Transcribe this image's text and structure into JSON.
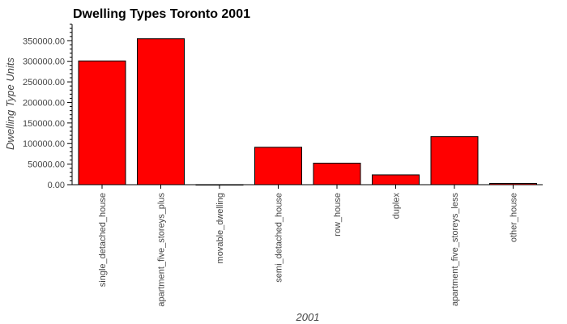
{
  "chart_data": {
    "type": "bar",
    "title": "Dwelling Types Toronto 2001",
    "xlabel": "2001",
    "ylabel": "Dwelling Type Units",
    "categories": [
      "single_detached_house",
      "apartment_five_storeys_plus",
      "movable_dwelling",
      "semi_detached_house",
      "row_house",
      "duplex",
      "apartment_five_storeys_less",
      "other_house"
    ],
    "values": [
      300930,
      355015,
      75,
      90995,
      52355,
      23785,
      116900,
      3040
    ],
    "ylim": [
      0,
      390000
    ],
    "yticks": [
      0,
      50000,
      100000,
      150000,
      200000,
      250000,
      300000,
      350000
    ],
    "ytick_labels": [
      "0.00",
      "50000.00",
      "100000.00",
      "150000.00",
      "200000.00",
      "250000.00",
      "300000.00",
      "350000.00"
    ],
    "grid": false,
    "legend": "none",
    "bar_color": "#ff0000",
    "bar_edge_color": "#000000"
  }
}
